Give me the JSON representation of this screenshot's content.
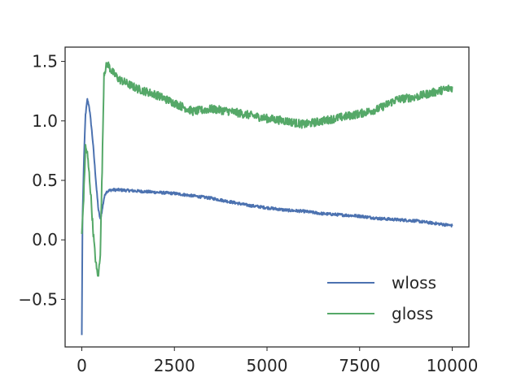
{
  "chart_data": {
    "type": "line",
    "title": "",
    "xlabel": "",
    "ylabel": "",
    "xlim": [
      -450,
      10450
    ],
    "ylim": [
      -0.9,
      1.62
    ],
    "xticks": [
      0,
      2500,
      5000,
      7500,
      10000
    ],
    "xtick_labels": [
      "0",
      "2500",
      "5000",
      "7500",
      "10000"
    ],
    "yticks": [
      -0.5,
      0.0,
      0.5,
      1.0,
      1.5
    ],
    "ytick_labels": [
      "−0.5",
      "0.0",
      "0.5",
      "1.0",
      "1.5"
    ],
    "grid": false,
    "legend_position": "lower-right",
    "series": [
      {
        "name": "wloss",
        "color": "#4c72b0",
        "noise": 0.012,
        "x": [
          0,
          20,
          60,
          100,
          150,
          200,
          250,
          300,
          350,
          400,
          450,
          500,
          550,
          600,
          650,
          700,
          800,
          1000,
          1500,
          2000,
          2500,
          3000,
          3500,
          4000,
          4500,
          5000,
          5500,
          6000,
          6500,
          7000,
          7500,
          8000,
          8500,
          9000,
          9500,
          10000
        ],
        "y": [
          -0.8,
          0.2,
          0.7,
          1.05,
          1.18,
          1.12,
          0.98,
          0.82,
          0.62,
          0.42,
          0.25,
          0.17,
          0.25,
          0.35,
          0.4,
          0.41,
          0.42,
          0.42,
          0.41,
          0.4,
          0.39,
          0.37,
          0.35,
          0.32,
          0.29,
          0.27,
          0.25,
          0.24,
          0.22,
          0.21,
          0.2,
          0.18,
          0.17,
          0.16,
          0.14,
          0.12
        ]
      },
      {
        "name": "gloss",
        "color": "#55a868",
        "noise": 0.035,
        "x": [
          0,
          50,
          100,
          150,
          200,
          250,
          300,
          350,
          400,
          450,
          500,
          550,
          600,
          650,
          700,
          800,
          1000,
          1500,
          2000,
          2500,
          3000,
          3500,
          4000,
          4500,
          5000,
          5500,
          6000,
          6500,
          7000,
          7500,
          8000,
          8500,
          9000,
          9500,
          10000
        ],
        "y": [
          0.05,
          0.35,
          0.78,
          0.72,
          0.55,
          0.35,
          0.1,
          -0.1,
          -0.25,
          -0.3,
          -0.1,
          0.6,
          1.4,
          1.45,
          1.48,
          1.42,
          1.35,
          1.27,
          1.22,
          1.15,
          1.08,
          1.1,
          1.08,
          1.05,
          1.02,
          1.0,
          0.97,
          1.0,
          1.03,
          1.06,
          1.1,
          1.18,
          1.2,
          1.24,
          1.28
        ]
      }
    ]
  }
}
